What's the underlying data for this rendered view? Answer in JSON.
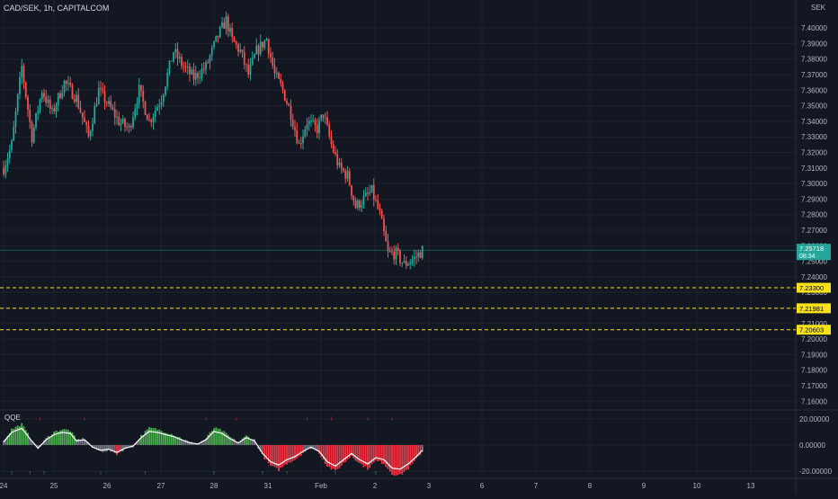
{
  "header": {
    "symbol_title": "CAD/SEK, 1h, CAPITALCOM",
    "currency": "SEK"
  },
  "colors": {
    "background": "#131722",
    "grid": "#1e222d",
    "up": "#26a69a",
    "down": "#ef5350",
    "axis_text": "#b2b5be",
    "hline": "#f7e11b",
    "price_label": "#26a69a",
    "osc_bull": "#4caf50",
    "osc_bear": "#f23645",
    "osc_neutral": "#787b86",
    "osc_line": "#ffffff"
  },
  "chart_data": [
    {
      "type": "candlestick",
      "title": "CAD/SEK, 1h, CAPITALCOM",
      "y_unit": "SEK",
      "ylim": [
        7.155,
        7.418
      ],
      "y_ticks": [
        "7.16000",
        "7.17000",
        "7.18000",
        "7.19000",
        "7.20000",
        "7.21000",
        "7.22000",
        "7.23000",
        "7.24000",
        "7.25000",
        "7.26000",
        "7.27000",
        "7.28000",
        "7.29000",
        "7.30000",
        "7.31000",
        "7.32000",
        "7.33000",
        "7.34000",
        "7.35000",
        "7.36000",
        "7.37000",
        "7.38000",
        "7.39000",
        "7.40000"
      ],
      "x_tick_labels": [
        "24",
        "25",
        "26",
        "27",
        "28",
        "31",
        "Feb",
        "2",
        "3",
        "6",
        "7",
        "8",
        "9",
        "10",
        "13"
      ],
      "grid": true,
      "price_path": [
        {
          "t": 0,
          "p": 7.31
        },
        {
          "t": 4,
          "p": 7.325
        },
        {
          "t": 9,
          "p": 7.375
        },
        {
          "t": 14,
          "p": 7.33
        },
        {
          "t": 19,
          "p": 7.36
        },
        {
          "t": 24,
          "p": 7.345
        },
        {
          "t": 30,
          "p": 7.365
        },
        {
          "t": 36,
          "p": 7.355
        },
        {
          "t": 42,
          "p": 7.33
        },
        {
          "t": 47,
          "p": 7.36
        },
        {
          "t": 52,
          "p": 7.35
        },
        {
          "t": 57,
          "p": 7.34
        },
        {
          "t": 62,
          "p": 7.335
        },
        {
          "t": 67,
          "p": 7.36
        },
        {
          "t": 72,
          "p": 7.34
        },
        {
          "t": 78,
          "p": 7.355
        },
        {
          "t": 84,
          "p": 7.385
        },
        {
          "t": 89,
          "p": 7.375
        },
        {
          "t": 94,
          "p": 7.368
        },
        {
          "t": 100,
          "p": 7.375
        },
        {
          "t": 106,
          "p": 7.395
        },
        {
          "t": 110,
          "p": 7.405
        },
        {
          "t": 113,
          "p": 7.392
        },
        {
          "t": 117,
          "p": 7.385
        },
        {
          "t": 121,
          "p": 7.37
        },
        {
          "t": 125,
          "p": 7.385
        },
        {
          "t": 130,
          "p": 7.393
        },
        {
          "t": 134,
          "p": 7.37
        },
        {
          "t": 138,
          "p": 7.36
        },
        {
          "t": 142,
          "p": 7.345
        },
        {
          "t": 146,
          "p": 7.325
        },
        {
          "t": 150,
          "p": 7.34
        },
        {
          "t": 155,
          "p": 7.335
        },
        {
          "t": 158,
          "p": 7.345
        },
        {
          "t": 162,
          "p": 7.325
        },
        {
          "t": 166,
          "p": 7.31
        },
        {
          "t": 170,
          "p": 7.305
        },
        {
          "t": 174,
          "p": 7.285
        },
        {
          "t": 178,
          "p": 7.29
        },
        {
          "t": 182,
          "p": 7.295
        },
        {
          "t": 186,
          "p": 7.28
        },
        {
          "t": 190,
          "p": 7.255
        },
        {
          "t": 194,
          "p": 7.255
        },
        {
          "t": 198,
          "p": 7.248
        },
        {
          "t": 203,
          "p": 7.252
        },
        {
          "t": 207,
          "p": 7.257
        }
      ],
      "current_price": {
        "value": "7.25718",
        "countdown": "08:34"
      },
      "horizontal_levels": [
        "7.23300",
        "7.21981",
        "7.20603"
      ]
    },
    {
      "type": "oscillator",
      "title": "QQE",
      "ylim": [
        -24,
        26
      ],
      "y_ticks": [
        "20.00000",
        "0.00000",
        "-20.00000"
      ],
      "path": [
        {
          "t": 0,
          "v": 3
        },
        {
          "t": 4,
          "v": 12
        },
        {
          "t": 9,
          "v": 16
        },
        {
          "t": 13,
          "v": 6
        },
        {
          "t": 17,
          "v": -3
        },
        {
          "t": 21,
          "v": 5
        },
        {
          "t": 25,
          "v": 10
        },
        {
          "t": 29,
          "v": 12
        },
        {
          "t": 33,
          "v": 11
        },
        {
          "t": 36,
          "v": 4
        },
        {
          "t": 40,
          "v": 5
        },
        {
          "t": 44,
          "v": -2
        },
        {
          "t": 48,
          "v": -5
        },
        {
          "t": 52,
          "v": -4
        },
        {
          "t": 56,
          "v": -7
        },
        {
          "t": 60,
          "v": -3
        },
        {
          "t": 64,
          "v": -1
        },
        {
          "t": 68,
          "v": 7
        },
        {
          "t": 72,
          "v": 13
        },
        {
          "t": 76,
          "v": 12
        },
        {
          "t": 80,
          "v": 10
        },
        {
          "t": 84,
          "v": 8
        },
        {
          "t": 88,
          "v": 5
        },
        {
          "t": 92,
          "v": 2
        },
        {
          "t": 96,
          "v": 1
        },
        {
          "t": 100,
          "v": 5
        },
        {
          "t": 104,
          "v": 13
        },
        {
          "t": 108,
          "v": 11
        },
        {
          "t": 112,
          "v": 6
        },
        {
          "t": 116,
          "v": 2
        },
        {
          "t": 120,
          "v": 7
        },
        {
          "t": 124,
          "v": 4
        },
        {
          "t": 128,
          "v": -8
        },
        {
          "t": 132,
          "v": -16
        },
        {
          "t": 136,
          "v": -19
        },
        {
          "t": 140,
          "v": -14
        },
        {
          "t": 144,
          "v": -11
        },
        {
          "t": 148,
          "v": -6
        },
        {
          "t": 152,
          "v": -2
        },
        {
          "t": 156,
          "v": -6
        },
        {
          "t": 160,
          "v": -16
        },
        {
          "t": 164,
          "v": -20
        },
        {
          "t": 168,
          "v": -14
        },
        {
          "t": 172,
          "v": -8
        },
        {
          "t": 176,
          "v": -14
        },
        {
          "t": 180,
          "v": -18
        },
        {
          "t": 184,
          "v": -12
        },
        {
          "t": 188,
          "v": -14
        },
        {
          "t": 192,
          "v": -22
        },
        {
          "t": 196,
          "v": -23
        },
        {
          "t": 200,
          "v": -18
        },
        {
          "t": 204,
          "v": -11
        },
        {
          "t": 207,
          "v": -5
        }
      ],
      "signal_marks_above": [
        4,
        18,
        40,
        100,
        115,
        150,
        162,
        180,
        192
      ],
      "signal_marks_below": [
        4,
        13,
        20,
        48,
        70,
        104,
        128,
        140,
        164,
        184
      ]
    }
  ]
}
